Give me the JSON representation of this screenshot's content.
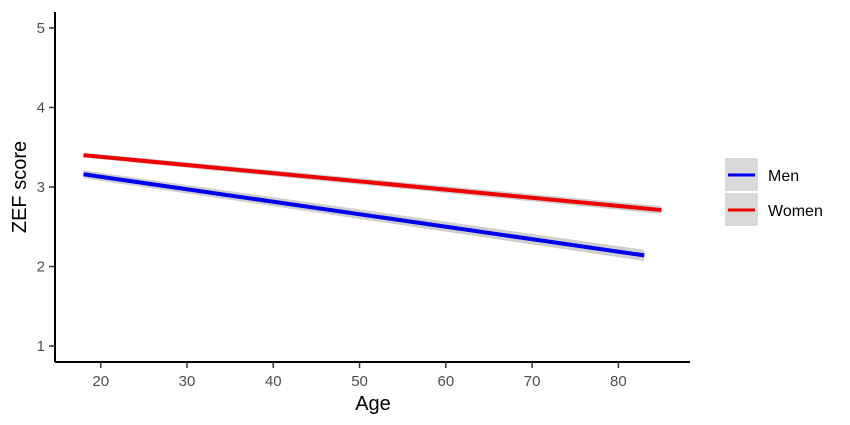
{
  "chart_data": {
    "type": "line",
    "title": "",
    "xlabel": "Age",
    "ylabel": "ZEF score",
    "xlim": [
      14.7,
      88.3
    ],
    "ylim": [
      0.8,
      5.2
    ],
    "x_ticks": [
      20,
      30,
      40,
      50,
      60,
      70,
      80
    ],
    "y_ticks": [
      1,
      2,
      3,
      4,
      5
    ],
    "grid": false,
    "legend_position": "right",
    "series": [
      {
        "name": "Men",
        "color": "#0000ee",
        "x": [
          18,
          83
        ],
        "y": [
          3.16,
          2.14
        ],
        "ci_lower": [
          3.11,
          2.07
        ],
        "ci_upper": [
          3.21,
          2.21
        ]
      },
      {
        "name": "Women",
        "color": "#ee0000",
        "x": [
          18,
          85
        ],
        "y": [
          3.4,
          2.71
        ],
        "ci_lower": [
          3.37,
          2.66
        ],
        "ci_upper": [
          3.43,
          2.76
        ]
      }
    ]
  }
}
